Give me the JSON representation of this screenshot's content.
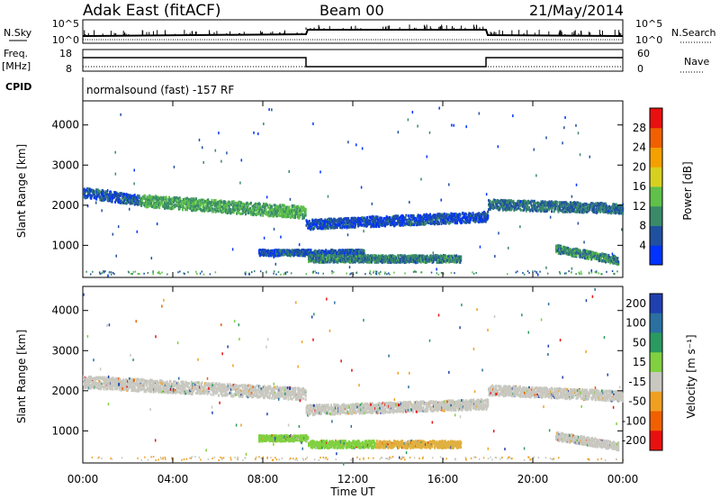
{
  "header": {
    "station": "Adak East (fitACF)",
    "beam": "Beam 00",
    "date": "21/May/2014"
  },
  "panels": {
    "nsky": {
      "label": "N.Sky",
      "ytick_top": "10^5",
      "ytick_bottom": "10^0"
    },
    "nsearch": {
      "label": "N.Search",
      "ytick_top": "10^5",
      "ytick_bottom": "10^0"
    },
    "freq": {
      "label_line1": "Freq.",
      "label_line2": "[MHz]",
      "ytick_top": "18",
      "ytick_bottom": "8"
    },
    "nave": {
      "label": "Nave",
      "ytick_top": "60",
      "ytick_bottom": "0"
    },
    "cpid": {
      "label": "CPID",
      "text": "normalsound (fast) -157 RF"
    }
  },
  "chart_data": [
    {
      "type": "heatmap",
      "name": "power",
      "ylabel": "Slant Range [km]",
      "xlabel": "",
      "ylim": [
        200,
        4600
      ],
      "yticks": [
        "1000",
        "2000",
        "3000",
        "4000"
      ],
      "colorbar": {
        "label": "Power [dB]",
        "ticks": [
          "4",
          "8",
          "12",
          "16",
          "20",
          "24",
          "28"
        ],
        "colors": [
          "#0033ff",
          "#2050a0",
          "#3a8a6a",
          "#5fc04a",
          "#d8d020",
          "#f4a000",
          "#f06000",
          "#e81010"
        ]
      },
      "echo_bands": [
        {
          "from_h": 0.0,
          "to_h": 2.5,
          "range_start_km": 2300,
          "range_end_km": 2100,
          "thickness_km": 250,
          "level_db": 6
        },
        {
          "from_h": 2.5,
          "to_h": 9.9,
          "range_start_km": 2100,
          "range_end_km": 1800,
          "thickness_km": 300,
          "level_db": 12
        },
        {
          "from_h": 9.9,
          "to_h": 18.0,
          "range_start_km": 1500,
          "range_end_km": 1700,
          "thickness_km": 250,
          "level_db": 5
        },
        {
          "from_h": 18.0,
          "to_h": 24.0,
          "range_start_km": 2000,
          "range_end_km": 1900,
          "thickness_km": 250,
          "level_db": 8
        },
        {
          "from_h": 7.8,
          "to_h": 12.5,
          "range_start_km": 800,
          "range_end_km": 800,
          "thickness_km": 150,
          "level_db": 6
        },
        {
          "from_h": 10.0,
          "to_h": 16.8,
          "range_start_km": 650,
          "range_end_km": 650,
          "thickness_km": 180,
          "level_db": 9
        },
        {
          "from_h": 21.0,
          "to_h": 23.8,
          "range_start_km": 900,
          "range_end_km": 600,
          "thickness_km": 200,
          "level_db": 10
        }
      ]
    },
    {
      "type": "heatmap",
      "name": "velocity",
      "ylabel": "Slant Range [km]",
      "xlabel": "Time UT",
      "ylim": [
        200,
        4600
      ],
      "yticks": [
        "1000",
        "2000",
        "3000",
        "4000"
      ],
      "xticks": [
        "00:00",
        "04:00",
        "08:00",
        "12:00",
        "16:00",
        "20:00",
        "00:00"
      ],
      "colorbar": {
        "label": "Velocity [m s⁻¹]",
        "ticks": [
          "200",
          "100",
          "50",
          "15",
          "-15",
          "-50",
          "-100",
          "-200"
        ],
        "colors": [
          "#2040b0",
          "#2a70a0",
          "#2a9a60",
          "#80d040",
          "#c8c8c0",
          "#f0a020",
          "#f06000",
          "#e81010"
        ]
      },
      "echo_bands": [
        {
          "from_h": 0.0,
          "to_h": 9.9,
          "range_start_km": 2200,
          "range_end_km": 1900,
          "thickness_km": 300,
          "color": "#c8c8c0"
        },
        {
          "from_h": 9.9,
          "to_h": 18.0,
          "range_start_km": 1500,
          "range_end_km": 1650,
          "thickness_km": 250,
          "color": "#c8c8c0"
        },
        {
          "from_h": 18.0,
          "to_h": 24.0,
          "range_start_km": 2000,
          "range_end_km": 1850,
          "thickness_km": 250,
          "color": "#c8c8c0"
        },
        {
          "from_h": 7.8,
          "to_h": 10.0,
          "range_start_km": 800,
          "range_end_km": 800,
          "thickness_km": 150,
          "color": "#80d040"
        },
        {
          "from_h": 10.0,
          "to_h": 13.0,
          "range_start_km": 650,
          "range_end_km": 650,
          "thickness_km": 180,
          "color": "#80d040"
        },
        {
          "from_h": 13.0,
          "to_h": 16.8,
          "range_start_km": 650,
          "range_end_km": 650,
          "thickness_km": 180,
          "color": "#e0b040"
        },
        {
          "from_h": 21.0,
          "to_h": 23.8,
          "range_start_km": 850,
          "range_end_km": 600,
          "thickness_km": 200,
          "color": "#c8c8c0"
        }
      ]
    }
  ]
}
